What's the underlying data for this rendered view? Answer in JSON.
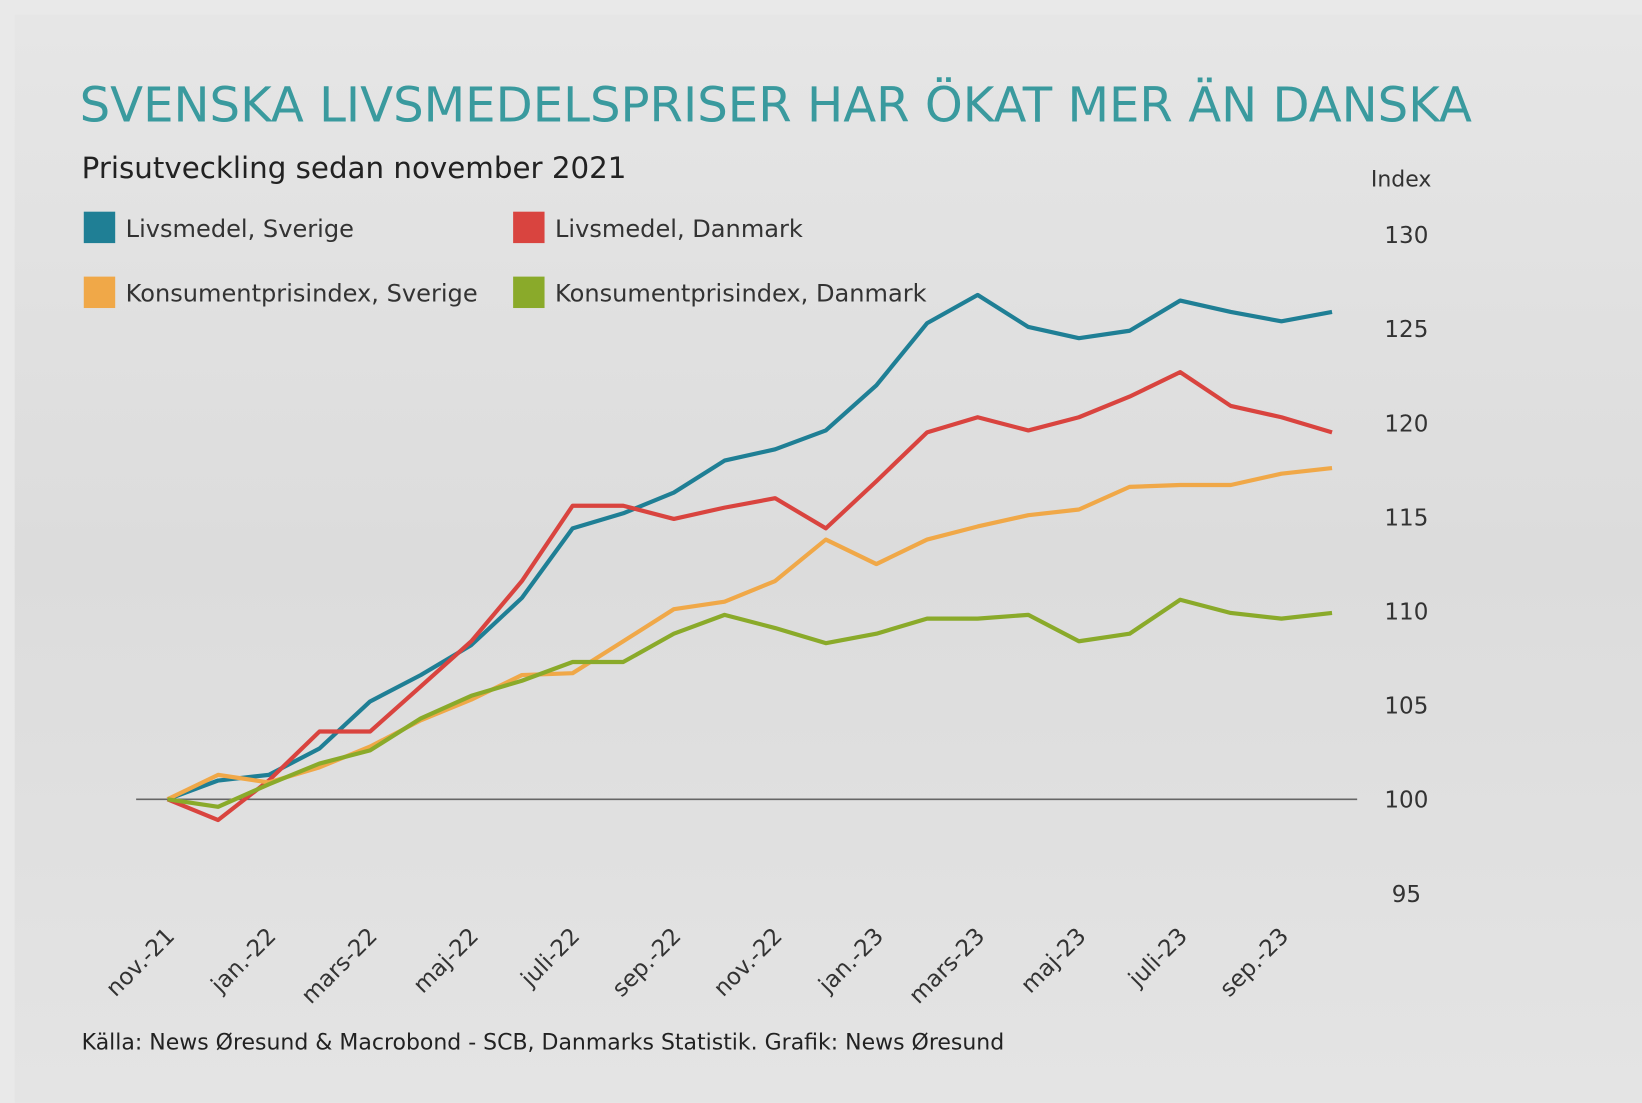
{
  "chart_data": {
    "type": "line",
    "title": "SVENSKA LIVSMEDELSPRISER HAR ÖKAT MER ÄN DANSKA",
    "subtitle": "Prisutveckling sedan november 2021",
    "y_axis_label": "Index",
    "source": "Källa: News Øresund & Macrobond - SCB, Danmarks Statistik. Grafik: News Øresund",
    "categories": [
      "nov.-21",
      null,
      "jan.-22",
      null,
      "mars-22",
      null,
      "maj-22",
      null,
      "juli-22",
      null,
      "sep.-22",
      null,
      "nov.-22",
      null,
      "jan.-23",
      null,
      "mars-23",
      null,
      "maj-23",
      null,
      "juli-23",
      null,
      "sep.-23",
      null
    ],
    "ylim": [
      95,
      130
    ],
    "yticks": [
      95,
      100,
      105,
      110,
      115,
      120,
      125,
      130
    ],
    "baseline": 100,
    "series": [
      {
        "name": "Livsmedel, Sverige",
        "color": "#1f7f95",
        "values": [
          100,
          101.0,
          101.3,
          102.7,
          105.2,
          106.6,
          108.2,
          110.7,
          114.4,
          115.2,
          116.3,
          118.0,
          118.6,
          119.6,
          122.0,
          125.3,
          126.8,
          125.1,
          124.5,
          124.9,
          126.5,
          125.9,
          125.4,
          125.9
        ]
      },
      {
        "name": "Livsmedel, Danmark",
        "color": "#d9443f",
        "values": [
          100,
          98.9,
          101.0,
          103.6,
          103.6,
          106.0,
          108.4,
          111.6,
          115.6,
          115.6,
          114.9,
          115.5,
          116.0,
          114.4,
          116.9,
          119.5,
          120.3,
          119.6,
          120.3,
          121.4,
          122.7,
          120.9,
          120.3,
          119.5
        ]
      },
      {
        "name": "Konsumentprisindex, Sverige",
        "color": "#f0a848",
        "values": [
          100,
          101.3,
          100.9,
          101.7,
          102.8,
          104.2,
          105.3,
          106.6,
          106.7,
          108.4,
          110.1,
          110.5,
          111.6,
          113.8,
          112.5,
          113.8,
          114.5,
          115.1,
          115.4,
          116.6,
          116.7,
          116.7,
          117.3,
          117.6
        ]
      },
      {
        "name": "Konsumentprisindex, Danmark",
        "color": "#8aaa2a",
        "values": [
          100,
          99.6,
          100.8,
          101.9,
          102.6,
          104.3,
          105.5,
          106.3,
          107.3,
          107.3,
          108.8,
          109.8,
          109.1,
          108.3,
          108.8,
          109.6,
          109.6,
          109.8,
          108.4,
          108.8,
          110.6,
          109.9,
          109.6,
          109.9
        ]
      }
    ]
  }
}
